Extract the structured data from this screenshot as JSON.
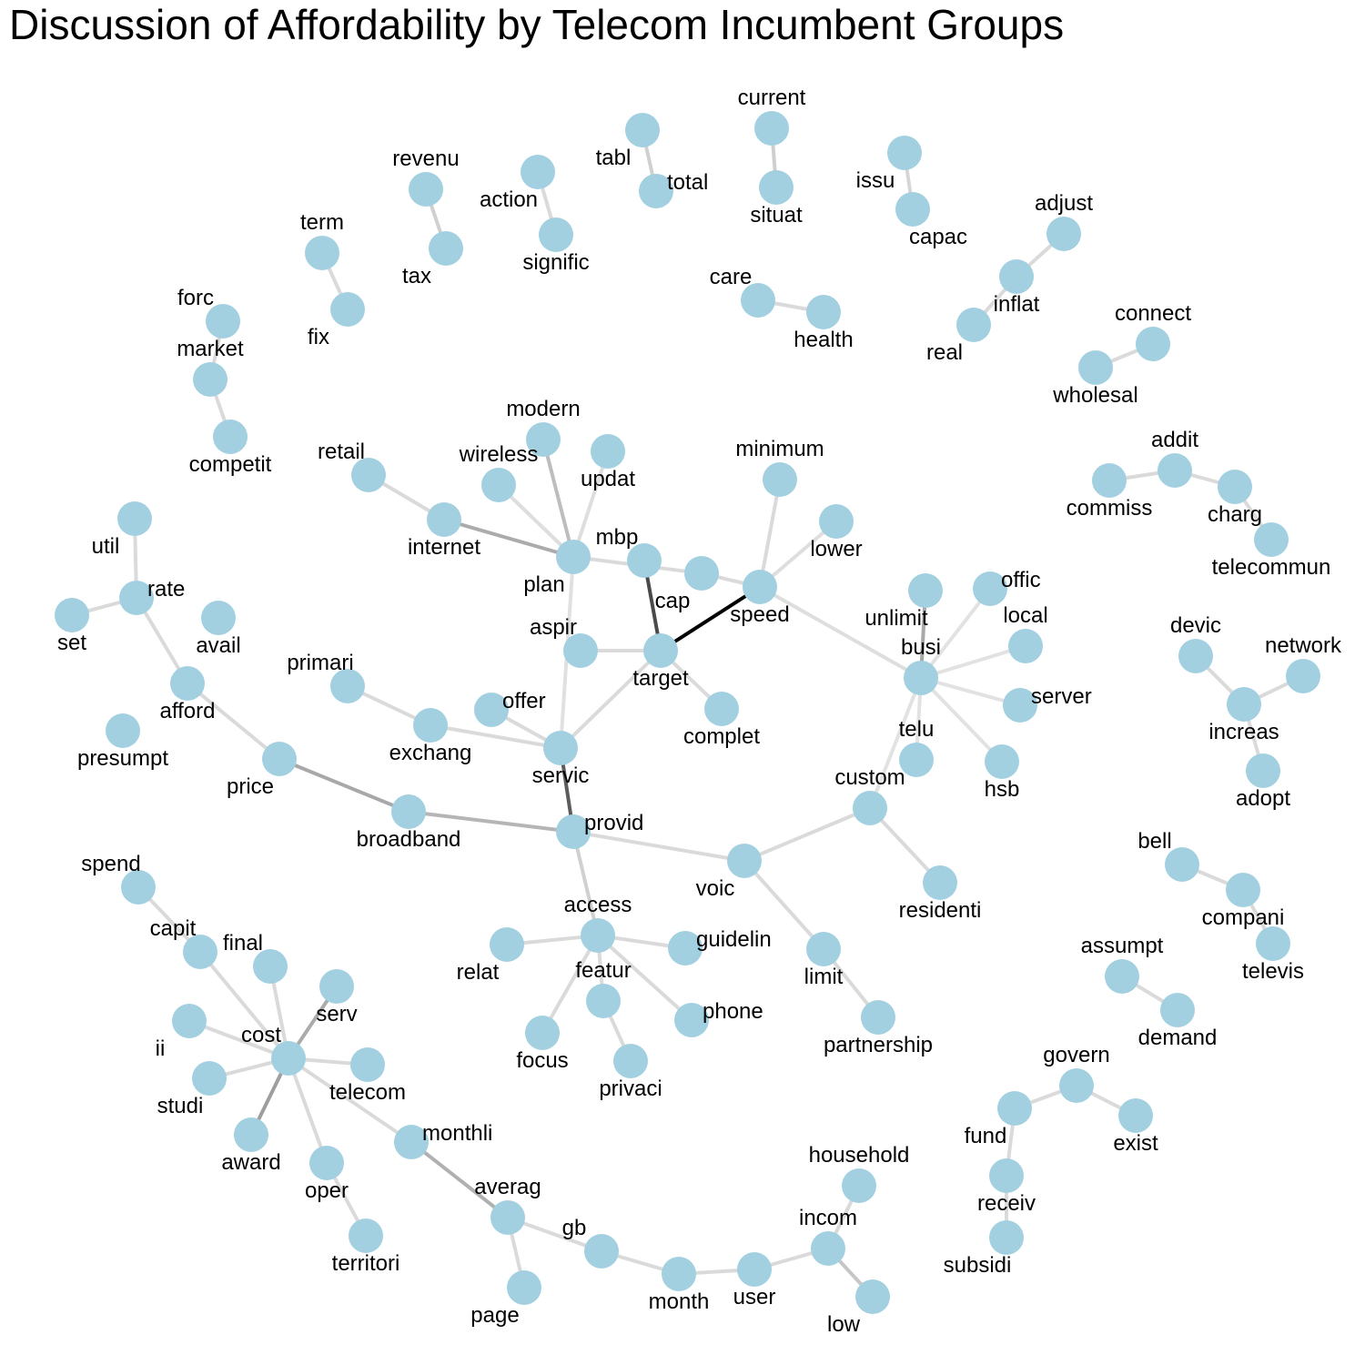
{
  "title": "Discussion of Affordability by Telecom Incumbent Groups",
  "node_color": "#a2d0e1",
  "nodes": [
    {
      "id": "current"
    },
    {
      "id": "situat"
    },
    {
      "id": "tabl"
    },
    {
      "id": "total"
    },
    {
      "id": "issu"
    },
    {
      "id": "capac"
    },
    {
      "id": "revenu"
    },
    {
      "id": "tax"
    },
    {
      "id": "action"
    },
    {
      "id": "signific"
    },
    {
      "id": "term"
    },
    {
      "id": "fix"
    },
    {
      "id": "adjust"
    },
    {
      "id": "inflat"
    },
    {
      "id": "real"
    },
    {
      "id": "care"
    },
    {
      "id": "health"
    },
    {
      "id": "forc"
    },
    {
      "id": "market"
    },
    {
      "id": "competit"
    },
    {
      "id": "connect"
    },
    {
      "id": "wholesal"
    },
    {
      "id": "modern"
    },
    {
      "id": "wireless"
    },
    {
      "id": "updat"
    },
    {
      "id": "retail"
    },
    {
      "id": "internet"
    },
    {
      "id": "plan"
    },
    {
      "id": "minimum"
    },
    {
      "id": "lower"
    },
    {
      "id": "mbp"
    },
    {
      "id": "cap"
    },
    {
      "id": "speed"
    },
    {
      "id": "aspir"
    },
    {
      "id": "target"
    },
    {
      "id": "complet"
    },
    {
      "id": "unlimit"
    },
    {
      "id": "offic"
    },
    {
      "id": "local"
    },
    {
      "id": "busi"
    },
    {
      "id": "server"
    },
    {
      "id": "telu"
    },
    {
      "id": "hsb"
    },
    {
      "id": "addit"
    },
    {
      "id": "commiss"
    },
    {
      "id": "charg"
    },
    {
      "id": "telecommun"
    },
    {
      "id": "devic"
    },
    {
      "id": "network"
    },
    {
      "id": "increas"
    },
    {
      "id": "adopt"
    },
    {
      "id": "util"
    },
    {
      "id": "rate"
    },
    {
      "id": "set"
    },
    {
      "id": "avail"
    },
    {
      "id": "afford"
    },
    {
      "id": "presumpt"
    },
    {
      "id": "primari"
    },
    {
      "id": "exchang"
    },
    {
      "id": "offer"
    },
    {
      "id": "servic"
    },
    {
      "id": "price"
    },
    {
      "id": "broadband"
    },
    {
      "id": "provid"
    },
    {
      "id": "custom"
    },
    {
      "id": "voic"
    },
    {
      "id": "residenti"
    },
    {
      "id": "bell"
    },
    {
      "id": "compani"
    },
    {
      "id": "televis"
    },
    {
      "id": "spend"
    },
    {
      "id": "capit"
    },
    {
      "id": "final"
    },
    {
      "id": "serv"
    },
    {
      "id": "ii"
    },
    {
      "id": "cost"
    },
    {
      "id": "studi"
    },
    {
      "id": "telecom"
    },
    {
      "id": "award"
    },
    {
      "id": "monthli"
    },
    {
      "id": "oper"
    },
    {
      "id": "territori"
    },
    {
      "id": "access"
    },
    {
      "id": "relat"
    },
    {
      "id": "guidelin"
    },
    {
      "id": "featur"
    },
    {
      "id": "focus"
    },
    {
      "id": "phone"
    },
    {
      "id": "privaci"
    },
    {
      "id": "limit"
    },
    {
      "id": "partnership"
    },
    {
      "id": "assumpt"
    },
    {
      "id": "demand"
    },
    {
      "id": "govern"
    },
    {
      "id": "fund"
    },
    {
      "id": "exist"
    },
    {
      "id": "receiv"
    },
    {
      "id": "subsidi"
    },
    {
      "id": "household"
    },
    {
      "id": "incom"
    },
    {
      "id": "averag"
    },
    {
      "id": "gb"
    },
    {
      "id": "page"
    },
    {
      "id": "month"
    },
    {
      "id": "user"
    },
    {
      "id": "low"
    }
  ],
  "edges": [
    {
      "a": "current",
      "b": "situat",
      "color": "#cfcfcf"
    },
    {
      "a": "tabl",
      "b": "total",
      "color": "#d0d0d0"
    },
    {
      "a": "issu",
      "b": "capac",
      "color": "#d6d6d6"
    },
    {
      "a": "revenu",
      "b": "tax",
      "color": "#d0d0d0"
    },
    {
      "a": "action",
      "b": "signific",
      "color": "#dadada"
    },
    {
      "a": "term",
      "b": "fix",
      "color": "#dadada"
    },
    {
      "a": "adjust",
      "b": "inflat",
      "color": "#dadada"
    },
    {
      "a": "inflat",
      "b": "real",
      "color": "#dadada"
    },
    {
      "a": "care",
      "b": "health",
      "color": "#dadada"
    },
    {
      "a": "forc",
      "b": "market",
      "color": "#dadada"
    },
    {
      "a": "market",
      "b": "competit",
      "color": "#dadada"
    },
    {
      "a": "connect",
      "b": "wholesal",
      "color": "#dadada"
    },
    {
      "a": "modern",
      "b": "plan",
      "color": "#bdbdbd"
    },
    {
      "a": "wireless",
      "b": "plan",
      "color": "#dedede"
    },
    {
      "a": "updat",
      "b": "plan",
      "color": "#dedede"
    },
    {
      "a": "retail",
      "b": "internet",
      "color": "#dadada"
    },
    {
      "a": "internet",
      "b": "plan",
      "color": "#ababab"
    },
    {
      "a": "plan",
      "b": "cap",
      "color": "#dadada"
    },
    {
      "a": "cap",
      "b": "speed",
      "color": "#dadada"
    },
    {
      "a": "plan",
      "b": "servic",
      "color": "#e0e0e0"
    },
    {
      "a": "mbp",
      "b": "target",
      "color": "#4a4a4a"
    },
    {
      "a": "minimum",
      "b": "speed",
      "color": "#dadada"
    },
    {
      "a": "lower",
      "b": "speed",
      "color": "#dedede"
    },
    {
      "a": "speed",
      "b": "target",
      "color": "#000000"
    },
    {
      "a": "speed",
      "b": "busi",
      "color": "#dedede"
    },
    {
      "a": "aspir",
      "b": "target",
      "color": "#dadada"
    },
    {
      "a": "target",
      "b": "complet",
      "color": "#dadada"
    },
    {
      "a": "target",
      "b": "servic",
      "color": "#dadada"
    },
    {
      "a": "unlimit",
      "b": "busi",
      "color": "#a8a8a8"
    },
    {
      "a": "offic",
      "b": "busi",
      "color": "#e2e2e2"
    },
    {
      "a": "local",
      "b": "busi",
      "color": "#e2e2e2"
    },
    {
      "a": "server",
      "b": "busi",
      "color": "#e2e2e2"
    },
    {
      "a": "telu",
      "b": "busi",
      "color": "#e2e2e2"
    },
    {
      "a": "hsb",
      "b": "busi",
      "color": "#e2e2e2"
    },
    {
      "a": "busi",
      "b": "custom",
      "color": "#e2e2e2"
    },
    {
      "a": "commiss",
      "b": "addit",
      "color": "#dadada"
    },
    {
      "a": "addit",
      "b": "charg",
      "color": "#dadada"
    },
    {
      "a": "charg",
      "b": "telecommun",
      "color": "#dadada"
    },
    {
      "a": "devic",
      "b": "increas",
      "color": "#dadada"
    },
    {
      "a": "network",
      "b": "increas",
      "color": "#dadada"
    },
    {
      "a": "increas",
      "b": "adopt",
      "color": "#dadada"
    },
    {
      "a": "util",
      "b": "rate",
      "color": "#dadada"
    },
    {
      "a": "set",
      "b": "rate",
      "color": "#dadada"
    },
    {
      "a": "rate",
      "b": "afford",
      "color": "#dadada"
    },
    {
      "a": "afford",
      "b": "price",
      "color": "#dadada"
    },
    {
      "a": "price",
      "b": "broadband",
      "color": "#a8a8a8"
    },
    {
      "a": "broadband",
      "b": "provid",
      "color": "#b5b5b5"
    },
    {
      "a": "primari",
      "b": "exchang",
      "color": "#dadada"
    },
    {
      "a": "exchang",
      "b": "servic",
      "color": "#dadada"
    },
    {
      "a": "offer",
      "b": "servic",
      "color": "#dadada"
    },
    {
      "a": "servic",
      "b": "provid",
      "color": "#5c5c5c"
    },
    {
      "a": "provid",
      "b": "voic",
      "color": "#dadada"
    },
    {
      "a": "voic",
      "b": "custom",
      "color": "#dadada"
    },
    {
      "a": "custom",
      "b": "residenti",
      "color": "#dadada"
    },
    {
      "a": "voic",
      "b": "limit",
      "color": "#dadada"
    },
    {
      "a": "limit",
      "b": "partnership",
      "color": "#dadada"
    },
    {
      "a": "provid",
      "b": "access",
      "color": "#d0d0d0"
    },
    {
      "a": "bell",
      "b": "compani",
      "color": "#dadada"
    },
    {
      "a": "compani",
      "b": "televis",
      "color": "#dadada"
    },
    {
      "a": "spend",
      "b": "capit",
      "color": "#dadada"
    },
    {
      "a": "capit",
      "b": "cost",
      "color": "#dadada"
    },
    {
      "a": "final",
      "b": "cost",
      "color": "#dadada"
    },
    {
      "a": "serv",
      "b": "cost",
      "color": "#ababab"
    },
    {
      "a": "ii",
      "b": "cost",
      "color": "#dadada"
    },
    {
      "a": "studi",
      "b": "cost",
      "color": "#dadada"
    },
    {
      "a": "telecom",
      "b": "cost",
      "color": "#dadada"
    },
    {
      "a": "award",
      "b": "cost",
      "color": "#9e9e9e"
    },
    {
      "a": "cost",
      "b": "monthli",
      "color": "#dadada"
    },
    {
      "a": "cost",
      "b": "oper",
      "color": "#dadada"
    },
    {
      "a": "oper",
      "b": "territori",
      "color": "#dadada"
    },
    {
      "a": "monthli",
      "b": "averag",
      "color": "#b0b0b0"
    },
    {
      "a": "averag",
      "b": "page",
      "color": "#dadada"
    },
    {
      "a": "averag",
      "b": "gb",
      "color": "#dadada"
    },
    {
      "a": "gb",
      "b": "month",
      "color": "#dadada"
    },
    {
      "a": "month",
      "b": "user",
      "color": "#dadada"
    },
    {
      "a": "user",
      "b": "incom",
      "color": "#dadada"
    },
    {
      "a": "incom",
      "b": "household",
      "color": "#dadada"
    },
    {
      "a": "incom",
      "b": "low",
      "color": "#c6c6c6"
    },
    {
      "a": "relat",
      "b": "access",
      "color": "#dadada"
    },
    {
      "a": "access",
      "b": "guidelin",
      "color": "#dadada"
    },
    {
      "a": "access",
      "b": "featur",
      "color": "#dadada"
    },
    {
      "a": "access",
      "b": "focus",
      "color": "#dadada"
    },
    {
      "a": "access",
      "b": "phone",
      "color": "#dadada"
    },
    {
      "a": "featur",
      "b": "privaci",
      "color": "#dadada"
    },
    {
      "a": "assumpt",
      "b": "demand",
      "color": "#dadada"
    },
    {
      "a": "fund",
      "b": "govern",
      "color": "#dadada"
    },
    {
      "a": "govern",
      "b": "exist",
      "color": "#dadada"
    },
    {
      "a": "fund",
      "b": "receiv",
      "color": "#dadada"
    },
    {
      "a": "receiv",
      "b": "subsidi",
      "color": "#dadada"
    }
  ]
}
